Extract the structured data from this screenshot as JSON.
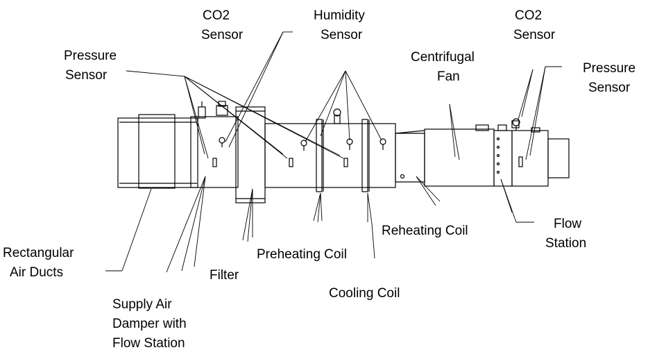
{
  "labels": {
    "co2_sensor_left": [
      "CO2",
      "Sensor"
    ],
    "humidity_sensor": [
      "Humidity",
      "Sensor"
    ],
    "co2_sensor_right": [
      "CO2",
      "Sensor"
    ],
    "pressure_sensor_left": [
      "Pressure",
      "Sensor"
    ],
    "centrifugal_fan": [
      "Centrifugal",
      "Fan"
    ],
    "pressure_sensor_right": [
      "Pressure",
      "Sensor"
    ],
    "reheating_coil": "Reheating Coil",
    "flow_station": [
      "Flow",
      "Station"
    ],
    "rectangular_air_ducts": [
      "Rectangular",
      "Air Ducts"
    ],
    "preheating_coil": "Preheating Coil",
    "filter": "Filter",
    "cooling_coil": "Cooling Coil",
    "supply_air_damper": [
      "Supply Air",
      "Damper with",
      "Flow Station"
    ]
  }
}
